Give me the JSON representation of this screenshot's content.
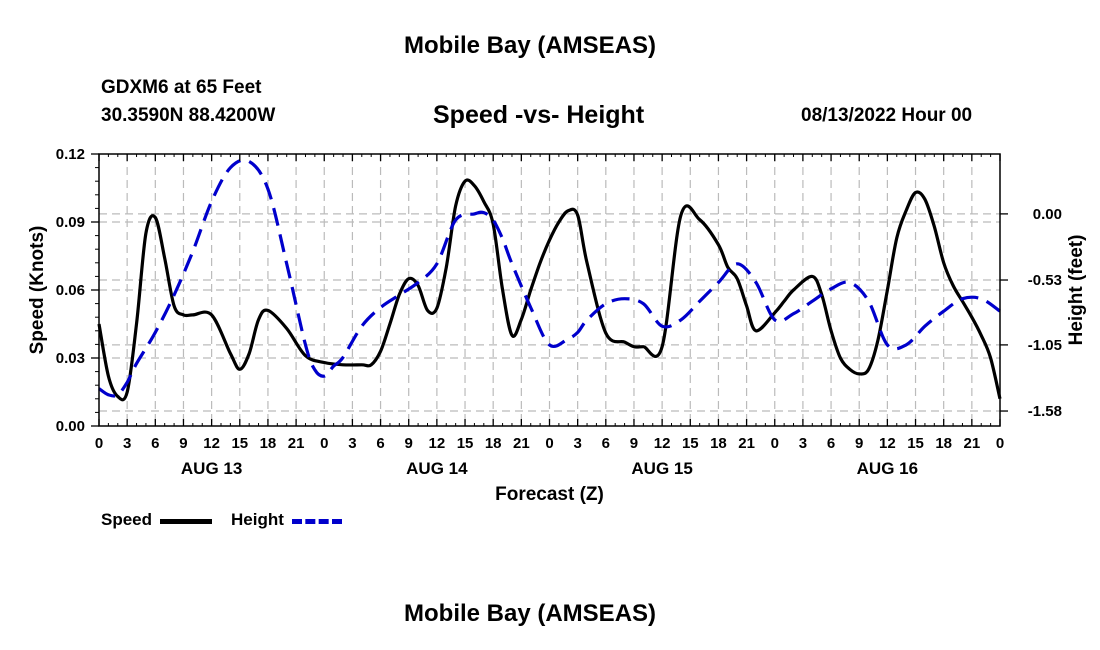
{
  "header": {
    "title": "Mobile Bay (AMSEAS)",
    "station": "GDXM6 at 65 Feet",
    "coords": "30.3590N  88.4200W",
    "date": "08/13/2022 Hour 00"
  },
  "footer_title": "Mobile Bay (AMSEAS)",
  "legend": {
    "speed_label": "Speed",
    "height_label": "Height"
  },
  "colors": {
    "speed": "#000000",
    "height": "#0000cc",
    "grid": "#bbbbbb"
  },
  "chart_data": {
    "type": "line",
    "title": "Speed -vs- Height",
    "xlabel": "Forecast (Z)",
    "ylabel": "Speed (Knots)",
    "y2label": "Height (feet)",
    "x_unit": "hours from 08/13/2022 00Z",
    "xlim": [
      0,
      96
    ],
    "ylim": [
      0,
      0.12
    ],
    "y2lim": [
      -1.7,
      0.48
    ],
    "y_ticks": [
      "0.00",
      "0.03",
      "0.06",
      "0.09",
      "0.12"
    ],
    "y_tick_values": [
      0,
      0.03,
      0.06,
      0.09,
      0.12
    ],
    "y2_ticks": [
      "0.00",
      "-0.53",
      "-1.05",
      "-1.58"
    ],
    "y2_tick_values": [
      0,
      -0.53,
      -1.05,
      -1.58
    ],
    "x_tick_labels": [
      "0",
      "3",
      "6",
      "9",
      "12",
      "15",
      "18",
      "21",
      "0",
      "3",
      "6",
      "9",
      "12",
      "15",
      "18",
      "21",
      "0",
      "3",
      "6",
      "9",
      "12",
      "15",
      "18",
      "21",
      "0",
      "3",
      "6",
      "9",
      "12",
      "15",
      "18",
      "21",
      "0"
    ],
    "day_labels": [
      {
        "hour": 12,
        "label": "AUG 13"
      },
      {
        "hour": 36,
        "label": "AUG 14"
      },
      {
        "hour": 60,
        "label": "AUG 15"
      },
      {
        "hour": 84,
        "label": "AUG 16"
      }
    ],
    "series": [
      {
        "name": "Speed",
        "axis": "left",
        "style": "solid",
        "x": [
          0,
          1,
          2,
          3,
          4,
          5,
          6,
          7,
          8,
          9,
          10,
          12,
          14,
          15,
          16,
          17,
          18,
          20,
          22,
          24,
          26,
          28,
          29,
          30,
          31,
          32,
          33,
          34,
          35,
          36,
          37,
          38,
          39,
          40,
          41,
          42,
          43,
          44,
          45,
          46,
          47,
          48,
          49,
          50,
          51,
          52,
          54,
          56,
          57,
          58,
          60,
          62,
          64,
          66,
          67,
          68,
          69,
          70,
          72,
          73,
          74,
          76,
          77,
          78,
          79,
          80,
          81,
          82,
          83,
          84,
          85,
          86,
          87,
          88,
          89,
          90,
          91,
          92,
          93,
          94,
          95,
          96
        ],
        "y": [
          0.045,
          0.022,
          0.013,
          0.015,
          0.045,
          0.085,
          0.092,
          0.074,
          0.053,
          0.049,
          0.049,
          0.049,
          0.032,
          0.025,
          0.032,
          0.047,
          0.051,
          0.043,
          0.031,
          0.028,
          0.027,
          0.027,
          0.027,
          0.033,
          0.045,
          0.058,
          0.065,
          0.062,
          0.051,
          0.052,
          0.07,
          0.097,
          0.108,
          0.106,
          0.099,
          0.089,
          0.06,
          0.04,
          0.047,
          0.06,
          0.072,
          0.082,
          0.09,
          0.095,
          0.093,
          0.072,
          0.041,
          0.037,
          0.035,
          0.035,
          0.035,
          0.093,
          0.091,
          0.08,
          0.07,
          0.065,
          0.053,
          0.042,
          0.05,
          0.055,
          0.06,
          0.066,
          0.058,
          0.042,
          0.03,
          0.025,
          0.023,
          0.025,
          0.038,
          0.06,
          0.083,
          0.095,
          0.103,
          0.1,
          0.088,
          0.072,
          0.062,
          0.055,
          0.048,
          0.04,
          0.03,
          0.012
        ]
      },
      {
        "name": "Height",
        "axis": "right",
        "style": "dashed",
        "x": [
          0,
          1,
          2,
          3,
          4,
          6,
          8,
          10,
          12,
          14,
          16,
          18,
          20,
          22,
          23,
          24,
          25,
          26,
          28,
          30,
          32,
          34,
          36,
          38,
          40,
          41,
          42,
          43,
          44,
          46,
          48,
          50,
          51,
          52,
          54,
          56,
          58,
          60,
          62,
          64,
          66,
          68,
          70,
          72,
          74,
          76,
          78,
          80,
          82,
          84,
          86,
          88,
          90,
          92,
          94,
          96
        ],
        "y": [
          -1.4,
          -1.45,
          -1.45,
          -1.35,
          -1.2,
          -0.95,
          -0.65,
          -0.3,
          0.1,
          0.37,
          0.42,
          0.2,
          -0.4,
          -1.05,
          -1.25,
          -1.3,
          -1.22,
          -1.15,
          -0.9,
          -0.75,
          -0.65,
          -0.55,
          -0.4,
          -0.05,
          0.0,
          0.01,
          -0.05,
          -0.2,
          -0.4,
          -0.75,
          -1.05,
          -1.0,
          -0.95,
          -0.85,
          -0.72,
          -0.68,
          -0.72,
          -0.9,
          -0.85,
          -0.7,
          -0.55,
          -0.4,
          -0.55,
          -0.85,
          -0.8,
          -0.7,
          -0.6,
          -0.55,
          -0.7,
          -1.05,
          -1.05,
          -0.9,
          -0.78,
          -0.68,
          -0.68,
          -0.78
        ]
      }
    ]
  }
}
